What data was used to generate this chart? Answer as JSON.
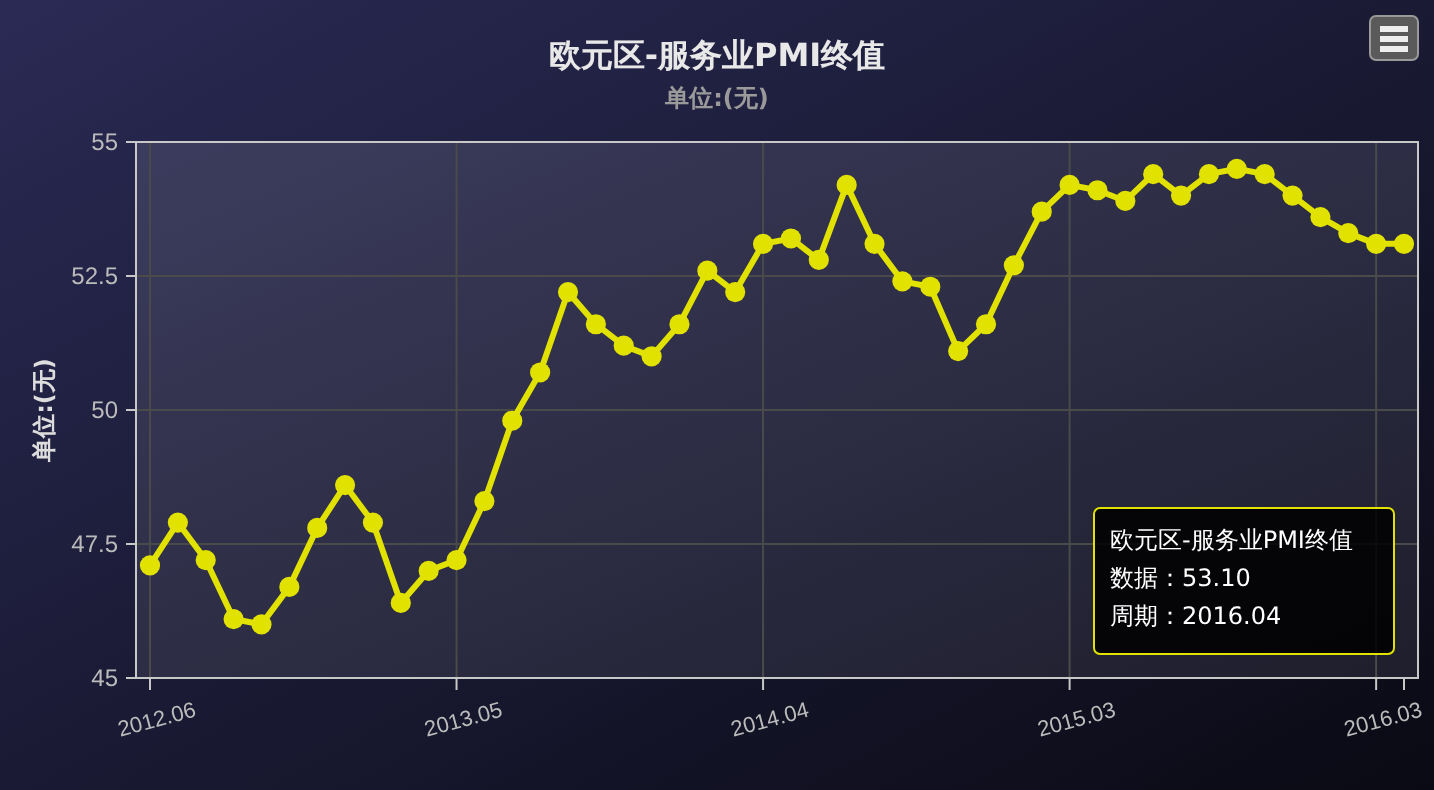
{
  "chart_data": {
    "type": "line",
    "title": "欧元区-服务业PMI终值",
    "subtitle": "单位:(无)",
    "ylabel": "单位:(无)",
    "categories": [
      "2012.06",
      null,
      null,
      null,
      null,
      null,
      null,
      null,
      null,
      null,
      null,
      "2013.05",
      null,
      null,
      null,
      null,
      null,
      null,
      null,
      null,
      null,
      null,
      "2014.04",
      null,
      null,
      null,
      null,
      null,
      null,
      null,
      null,
      null,
      null,
      "2015.03",
      null,
      null,
      null,
      null,
      null,
      null,
      null,
      null,
      null,
      null,
      "2016.03",
      null
    ],
    "series": [
      {
        "color": "#e2e200",
        "values": [
          47.1,
          47.9,
          47.2,
          46.1,
          46.0,
          46.7,
          47.8,
          48.6,
          47.9,
          46.4,
          47.0,
          47.2,
          48.3,
          49.8,
          50.7,
          52.2,
          51.6,
          51.2,
          51.0,
          51.6,
          52.6,
          52.2,
          53.1,
          53.2,
          52.8,
          54.2,
          53.1,
          52.4,
          52.3,
          51.1,
          51.6,
          52.7,
          53.7,
          54.2,
          54.1,
          53.9,
          54.4,
          54.0,
          54.4,
          54.5,
          54.4,
          54.0,
          53.6,
          53.3,
          53.1,
          53.1
        ]
      }
    ],
    "ylim": [
      45,
      55
    ],
    "yticks": [
      45,
      47.5,
      50,
      52.5,
      55
    ],
    "grid": true,
    "marker": "circle",
    "line_style": "solid",
    "annotations": [
      "欧元区-服务业PMI终值",
      "数据：53.10",
      "周期：2016.04"
    ]
  }
}
